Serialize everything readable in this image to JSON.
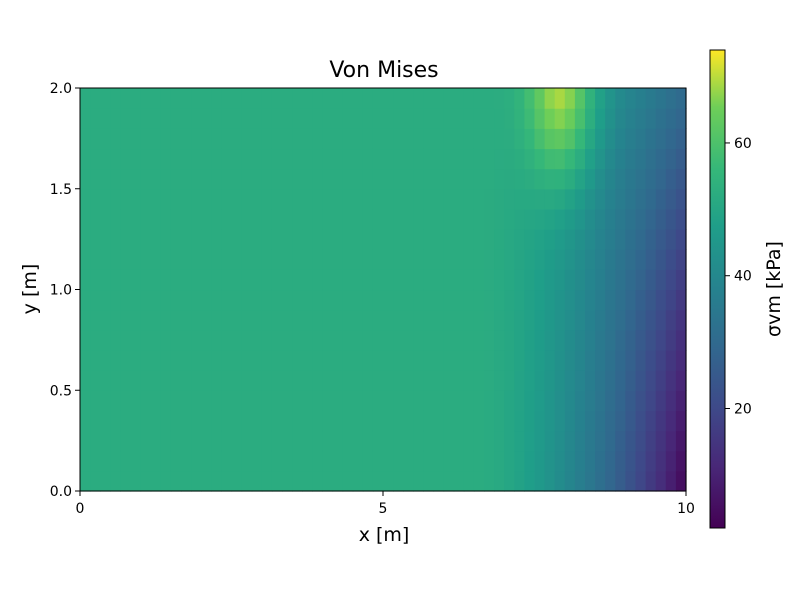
{
  "chart_data": {
    "type": "heatmap",
    "title": "Von Mises",
    "xlabel": "x [m]",
    "ylabel": "y [m]",
    "xlim": [
      0,
      10
    ],
    "ylim": [
      0.0,
      2.0
    ],
    "xticks": [
      0,
      5,
      10
    ],
    "xtick_labels": [
      "0",
      "5",
      "10"
    ],
    "yticks": [
      0.0,
      0.5,
      1.0,
      1.5,
      2.0
    ],
    "ytick_labels": [
      "0.0",
      "0.5",
      "1.0",
      "1.5",
      "2.0"
    ],
    "colorbar": {
      "label": "σvm [kPa]",
      "colormap": "viridis",
      "range": [
        2,
        74
      ],
      "ticks": [
        20,
        40,
        60
      ],
      "tick_labels": [
        "20",
        "40",
        "60"
      ]
    },
    "grid": false,
    "field": {
      "nx": 60,
      "ny": 20,
      "base_value": 52,
      "description_values": {
        "bulk_region_x_0_to_6.5": 52,
        "right_edge_bottom_x_10_y_0": 3,
        "right_edge_top_x_10_y_2": 28,
        "max_near_x_8_y_2": 74
      }
    }
  }
}
